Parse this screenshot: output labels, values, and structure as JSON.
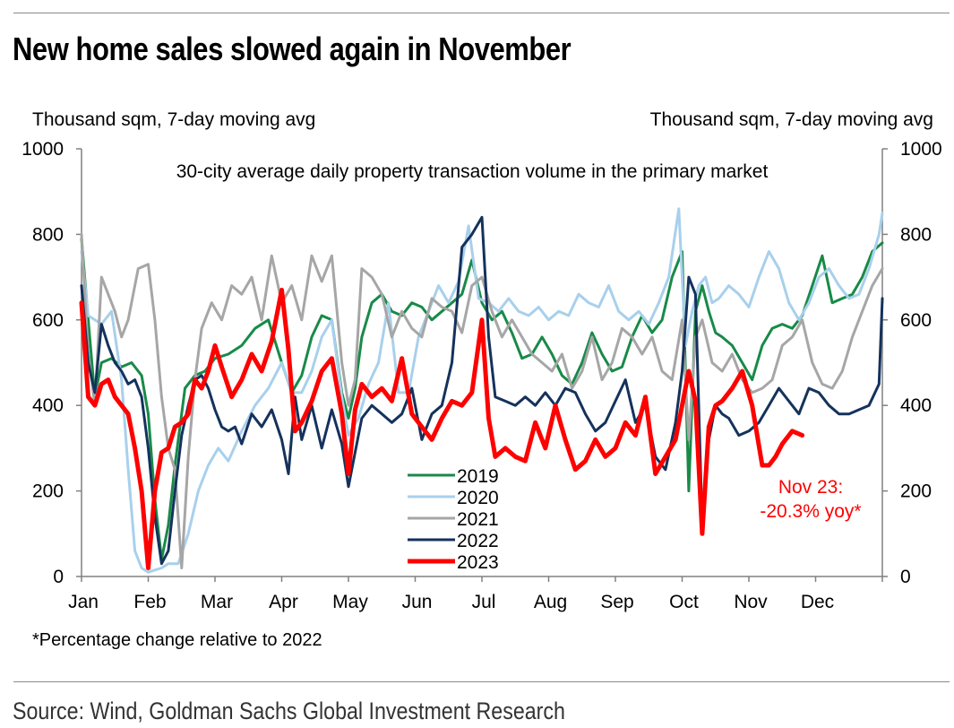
{
  "title": "New home sales slowed again in November",
  "footnote": "*Percentage change relative to 2022",
  "source": "Source: Wind, Goldman Sachs Global Investment Research",
  "chart_data": {
    "type": "line",
    "title": "30-city average daily property transaction volume in the primary market",
    "ylabel_left": "Thousand sqm, 7-day moving avg",
    "ylabel_right": "Thousand sqm, 7-day moving avg",
    "ylim": [
      0,
      1000
    ],
    "yticks": [
      0,
      200,
      400,
      600,
      800,
      1000
    ],
    "xlim": [
      0,
      12
    ],
    "month_labels": [
      "Jan",
      "Feb",
      "Mar",
      "Apr",
      "May",
      "Jun",
      "Jul",
      "Aug",
      "Sep",
      "Oct",
      "Nov",
      "Dec"
    ],
    "x_unit": "months from Jan 1",
    "annotation": {
      "text_line1": "Nov 23:",
      "text_line2": "-20.3% yoy*",
      "color": "#ff0000"
    },
    "series": [
      {
        "name": "2019",
        "color": "#188a48",
        "width": 3,
        "x": [
          0,
          0.1,
          0.2,
          0.3,
          0.45,
          0.6,
          0.75,
          0.9,
          1.0,
          1.1,
          1.2,
          1.3,
          1.4,
          1.55,
          1.7,
          1.85,
          2.0,
          2.2,
          2.4,
          2.6,
          2.8,
          3.0,
          3.15,
          3.3,
          3.45,
          3.6,
          3.75,
          3.9,
          4.0,
          4.1,
          4.2,
          4.35,
          4.5,
          4.65,
          4.8,
          4.95,
          5.1,
          5.25,
          5.4,
          5.55,
          5.7,
          5.85,
          6.0,
          6.15,
          6.3,
          6.45,
          6.6,
          6.75,
          6.9,
          7.05,
          7.2,
          7.35,
          7.5,
          7.65,
          7.8,
          7.95,
          8.1,
          8.25,
          8.4,
          8.55,
          8.7,
          8.85,
          9.0,
          9.1,
          9.2,
          9.3,
          9.4,
          9.5,
          9.6,
          9.75,
          9.9,
          10.05,
          10.2,
          10.35,
          10.5,
          10.65,
          10.8,
          10.95,
          11.1,
          11.25,
          11.4,
          11.55,
          11.7,
          11.85,
          12.0
        ],
        "y": [
          790,
          600,
          420,
          500,
          510,
          490,
          500,
          470,
          380,
          180,
          40,
          120,
          260,
          440,
          470,
          480,
          510,
          520,
          540,
          580,
          600,
          500,
          430,
          470,
          560,
          610,
          600,
          430,
          370,
          440,
          560,
          640,
          660,
          620,
          610,
          640,
          630,
          600,
          620,
          640,
          660,
          740,
          640,
          600,
          620,
          570,
          510,
          520,
          560,
          520,
          470,
          450,
          500,
          570,
          520,
          480,
          490,
          560,
          610,
          570,
          600,
          700,
          760,
          200,
          620,
          680,
          620,
          570,
          560,
          540,
          500,
          460,
          540,
          580,
          590,
          580,
          610,
          680,
          750,
          640,
          650,
          660,
          700,
          760,
          780
        ]
      },
      {
        "name": "2020",
        "color": "#a8d0ec",
        "width": 3,
        "x": [
          0,
          0.1,
          0.2,
          0.3,
          0.45,
          0.6,
          0.7,
          0.8,
          0.9,
          1.0,
          1.1,
          1.2,
          1.3,
          1.45,
          1.6,
          1.75,
          1.9,
          2.05,
          2.2,
          2.4,
          2.6,
          2.8,
          3.0,
          3.15,
          3.3,
          3.45,
          3.6,
          3.75,
          3.9,
          4.0,
          4.15,
          4.3,
          4.45,
          4.6,
          4.75,
          4.9,
          5.05,
          5.2,
          5.35,
          5.5,
          5.65,
          5.8,
          5.95,
          6.1,
          6.25,
          6.4,
          6.55,
          6.7,
          6.85,
          7.0,
          7.15,
          7.3,
          7.45,
          7.6,
          7.75,
          7.9,
          8.05,
          8.2,
          8.35,
          8.5,
          8.65,
          8.8,
          8.95,
          9.05,
          9.15,
          9.25,
          9.35,
          9.45,
          9.55,
          9.7,
          9.85,
          10.0,
          10.15,
          10.3,
          10.45,
          10.6,
          10.75,
          10.9,
          11.05,
          11.2,
          11.35,
          11.5,
          11.65,
          11.8,
          11.95,
          12.0
        ],
        "y": [
          760,
          610,
          600,
          590,
          620,
          460,
          250,
          60,
          20,
          10,
          15,
          20,
          30,
          30,
          100,
          200,
          260,
          300,
          270,
          340,
          400,
          440,
          500,
          430,
          430,
          480,
          560,
          600,
          420,
          330,
          370,
          450,
          500,
          640,
          430,
          430,
          560,
          620,
          680,
          640,
          690,
          820,
          650,
          640,
          620,
          650,
          620,
          610,
          630,
          600,
          620,
          610,
          660,
          640,
          630,
          680,
          620,
          600,
          620,
          590,
          640,
          700,
          860,
          540,
          620,
          680,
          700,
          640,
          650,
          680,
          660,
          630,
          700,
          760,
          720,
          640,
          600,
          640,
          700,
          720,
          680,
          650,
          660,
          720,
          800,
          850
        ]
      },
      {
        "name": "2021",
        "color": "#a6a6a6",
        "width": 3,
        "x": [
          0,
          0.1,
          0.2,
          0.3,
          0.4,
          0.5,
          0.6,
          0.7,
          0.85,
          1.0,
          1.1,
          1.2,
          1.3,
          1.4,
          1.5,
          1.6,
          1.7,
          1.8,
          1.95,
          2.1,
          2.25,
          2.4,
          2.55,
          2.7,
          2.85,
          3.0,
          3.15,
          3.3,
          3.45,
          3.6,
          3.75,
          3.9,
          4.0,
          4.1,
          4.2,
          4.35,
          4.5,
          4.65,
          4.8,
          4.95,
          5.1,
          5.25,
          5.4,
          5.55,
          5.7,
          5.85,
          6.0,
          6.15,
          6.3,
          6.45,
          6.6,
          6.75,
          6.9,
          7.05,
          7.2,
          7.35,
          7.5,
          7.65,
          7.8,
          7.95,
          8.1,
          8.25,
          8.4,
          8.55,
          8.7,
          8.85,
          9.0,
          9.1,
          9.2,
          9.3,
          9.45,
          9.6,
          9.75,
          9.9,
          10.05,
          10.2,
          10.35,
          10.5,
          10.65,
          10.8,
          10.95,
          11.1,
          11.25,
          11.4,
          11.55,
          11.7,
          11.85,
          12.0
        ],
        "y": [
          800,
          520,
          400,
          700,
          660,
          620,
          560,
          600,
          720,
          730,
          600,
          420,
          300,
          250,
          20,
          280,
          460,
          580,
          640,
          600,
          680,
          660,
          700,
          600,
          750,
          640,
          680,
          600,
          750,
          690,
          750,
          500,
          400,
          460,
          720,
          700,
          660,
          560,
          620,
          580,
          560,
          650,
          630,
          620,
          570,
          680,
          700,
          620,
          560,
          600,
          560,
          520,
          500,
          480,
          520,
          440,
          480,
          560,
          460,
          500,
          580,
          560,
          520,
          560,
          480,
          460,
          600,
          320,
          560,
          600,
          500,
          480,
          520,
          460,
          430,
          440,
          460,
          540,
          560,
          600,
          500,
          450,
          440,
          480,
          560,
          620,
          680,
          720
        ]
      },
      {
        "name": "2022",
        "color": "#14325c",
        "width": 3,
        "x": [
          0,
          0.1,
          0.2,
          0.3,
          0.4,
          0.5,
          0.6,
          0.7,
          0.8,
          0.9,
          1.0,
          1.1,
          1.2,
          1.3,
          1.4,
          1.5,
          1.6,
          1.7,
          1.8,
          1.9,
          2.0,
          2.1,
          2.2,
          2.3,
          2.4,
          2.55,
          2.7,
          2.85,
          3.0,
          3.1,
          3.2,
          3.3,
          3.45,
          3.6,
          3.75,
          3.9,
          4.0,
          4.1,
          4.2,
          4.35,
          4.5,
          4.65,
          4.8,
          4.95,
          5.1,
          5.25,
          5.4,
          5.55,
          5.7,
          5.85,
          6.0,
          6.1,
          6.2,
          6.35,
          6.5,
          6.65,
          6.8,
          6.95,
          7.1,
          7.25,
          7.4,
          7.55,
          7.7,
          7.85,
          8.0,
          8.15,
          8.3,
          8.45,
          8.6,
          8.75,
          8.9,
          9.0,
          9.1,
          9.2,
          9.3,
          9.4,
          9.5,
          9.6,
          9.7,
          9.85,
          10.0,
          10.15,
          10.3,
          10.45,
          10.6,
          10.75,
          10.9,
          11.05,
          11.2,
          11.35,
          11.5,
          11.65,
          11.8,
          11.95,
          12.0
        ],
        "y": [
          680,
          500,
          430,
          590,
          540,
          500,
          480,
          450,
          460,
          420,
          300,
          140,
          30,
          60,
          200,
          330,
          400,
          460,
          470,
          440,
          390,
          350,
          340,
          350,
          310,
          380,
          350,
          390,
          320,
          240,
          420,
          320,
          400,
          300,
          390,
          310,
          210,
          290,
          370,
          400,
          380,
          360,
          380,
          440,
          320,
          380,
          400,
          500,
          770,
          800,
          840,
          560,
          420,
          410,
          400,
          420,
          400,
          430,
          400,
          440,
          430,
          380,
          340,
          360,
          410,
          460,
          360,
          400,
          280,
          250,
          360,
          480,
          700,
          660,
          120,
          320,
          400,
          380,
          370,
          330,
          340,
          360,
          400,
          440,
          410,
          380,
          440,
          430,
          400,
          380,
          380,
          390,
          400,
          450,
          650
        ]
      },
      {
        "name": "2023",
        "color": "#ff0000",
        "width": 5,
        "x": [
          0,
          0.1,
          0.2,
          0.3,
          0.4,
          0.5,
          0.6,
          0.7,
          0.8,
          0.9,
          1.0,
          1.1,
          1.2,
          1.3,
          1.4,
          1.5,
          1.6,
          1.7,
          1.8,
          1.9,
          2.0,
          2.1,
          2.25,
          2.4,
          2.55,
          2.7,
          2.85,
          3.0,
          3.1,
          3.2,
          3.3,
          3.45,
          3.6,
          3.75,
          3.9,
          4.0,
          4.1,
          4.2,
          4.35,
          4.5,
          4.65,
          4.8,
          4.95,
          5.1,
          5.25,
          5.4,
          5.55,
          5.7,
          5.85,
          6.0,
          6.1,
          6.2,
          6.35,
          6.5,
          6.65,
          6.8,
          6.95,
          7.1,
          7.25,
          7.4,
          7.55,
          7.7,
          7.85,
          8.0,
          8.15,
          8.3,
          8.45,
          8.6,
          8.75,
          8.9,
          9.0,
          9.1,
          9.2,
          9.3,
          9.4,
          9.5,
          9.6,
          9.75,
          9.9,
          10.05,
          10.2,
          10.3,
          10.4,
          10.5,
          10.65,
          10.8
        ],
        "y": [
          640,
          420,
          400,
          450,
          460,
          420,
          400,
          380,
          300,
          200,
          20,
          200,
          290,
          300,
          350,
          360,
          380,
          460,
          440,
          480,
          540,
          490,
          420,
          460,
          520,
          480,
          550,
          670,
          530,
          340,
          360,
          410,
          480,
          510,
          380,
          240,
          390,
          450,
          420,
          440,
          410,
          510,
          380,
          350,
          320,
          370,
          410,
          400,
          430,
          600,
          370,
          280,
          300,
          280,
          270,
          360,
          300,
          400,
          320,
          250,
          270,
          320,
          280,
          300,
          360,
          330,
          420,
          240,
          280,
          320,
          400,
          480,
          410,
          100,
          350,
          400,
          410,
          440,
          480,
          400,
          260,
          260,
          280,
          310,
          340,
          330
        ]
      }
    ]
  }
}
